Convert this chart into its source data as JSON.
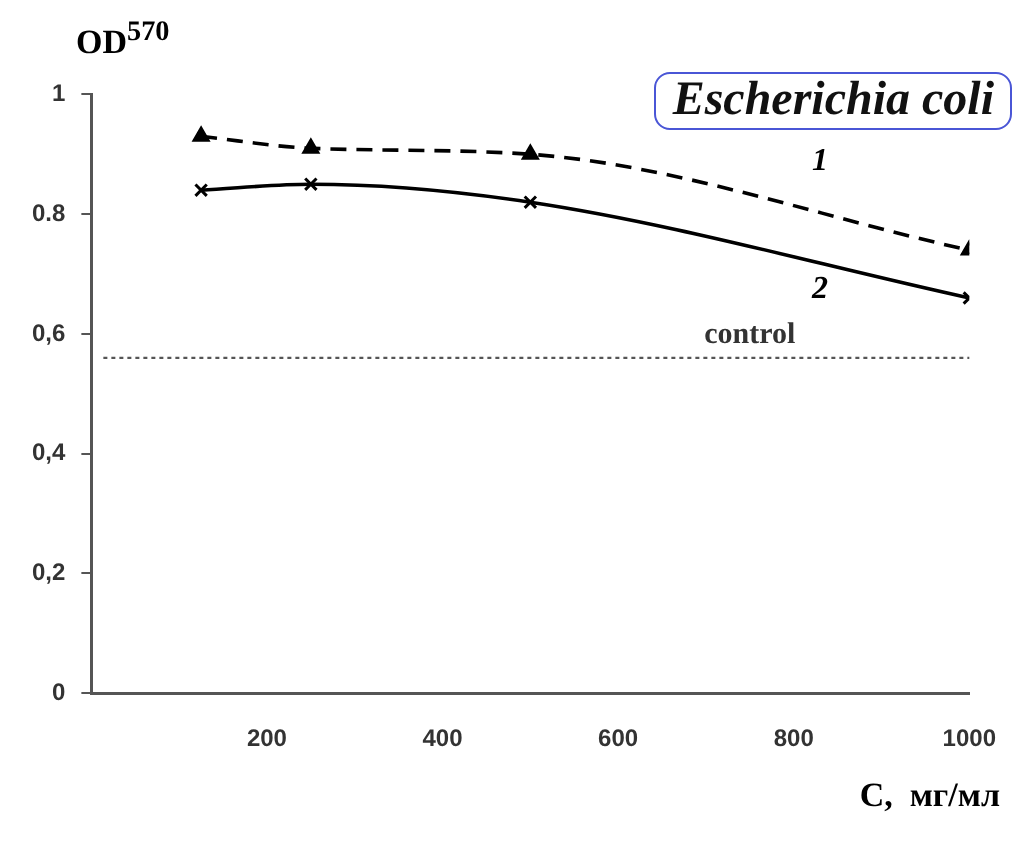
{
  "chart_data": {
    "type": "line",
    "title": "Escherichia coli",
    "ylabel": "OD$^{570}$",
    "xlabel": "C,  мг/мл",
    "xlim": [
      0,
      1000
    ],
    "xticks": [
      200,
      400,
      600,
      800,
      1000
    ],
    "ylim": [
      0,
      1
    ],
    "yticks": [
      {
        "value": 0,
        "label": "0"
      },
      {
        "value": 0.2,
        "label": "0,2"
      },
      {
        "value": 0.4,
        "label": "0,4"
      },
      {
        "value": 0.6,
        "label": "0,6"
      },
      {
        "value": 0.8,
        "label": "0.8"
      },
      {
        "value": 1,
        "label": "1"
      }
    ],
    "grid": false,
    "legend": false,
    "series": [
      {
        "name": "1",
        "color": "#000000",
        "x": [
          125,
          250,
          500,
          1000
        ],
        "values": [
          0.93,
          0.91,
          0.9,
          0.74
        ],
        "marker": "triangle",
        "line_style": "dashed"
      },
      {
        "name": "2",
        "color": "#000000",
        "x": [
          125,
          250,
          500,
          1000
        ],
        "values": [
          0.84,
          0.85,
          0.82,
          0.66
        ],
        "marker": "cross",
        "line_style": "solid"
      }
    ],
    "ref_lines": [
      {
        "axis": "y",
        "value": 0.56,
        "label": "control",
        "line_style": "dotted",
        "color": "#555555"
      }
    ]
  }
}
